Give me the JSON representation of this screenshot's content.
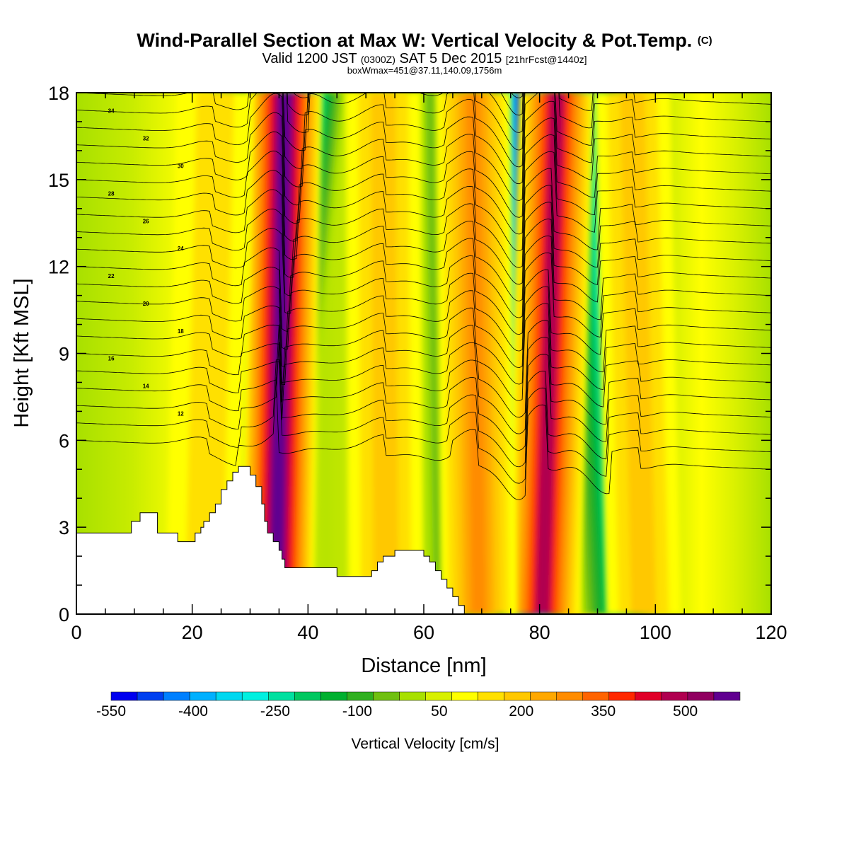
{
  "chart_data": {
    "type": "heatmap",
    "title": "Wind-Parallel Section at Max W: Vertical Velocity & Pot.Temp.",
    "copyright_mark": "(C)",
    "subtitle_main": "Valid 1200 JST",
    "subtitle_utc": "(0300Z)",
    "subtitle_date": "SAT 5 Dec 2015",
    "subtitle_fcst": "[21hrFcst@1440z]",
    "subtitle2": "boxWmax=451@37.11,140.09,1756m",
    "xlabel": "Distance [nm]",
    "ylabel": "Height [Kft MSL]",
    "xlim": [
      0,
      120
    ],
    "ylim": [
      0,
      18
    ],
    "x_ticks": [
      "0",
      "20",
      "40",
      "60",
      "80",
      "100",
      "120"
    ],
    "y_ticks": [
      "0",
      "3",
      "6",
      "9",
      "12",
      "15",
      "18"
    ],
    "colorbar": {
      "label": "Vertical Velocity [cm/s]",
      "tick_labels": [
        "-550",
        "-400",
        "-250",
        "-100",
        "50",
        "200",
        "350",
        "500"
      ],
      "colors": [
        "#0000f0",
        "#0040f0",
        "#0080ff",
        "#00b0ff",
        "#00d8f0",
        "#00f0e0",
        "#00e0a0",
        "#00c860",
        "#00b030",
        "#30b020",
        "#70c010",
        "#a8e000",
        "#d8f000",
        "#ffff00",
        "#ffe000",
        "#ffc800",
        "#ffa800",
        "#ff8c00",
        "#ff6400",
        "#ff2800",
        "#e00028",
        "#b00050",
        "#900060",
        "#600090"
      ]
    },
    "updrafts": [
      {
        "x_top": 36.0,
        "x_bottom": 34.5,
        "peak_cm_s": 550
      },
      {
        "x_top": 83.0,
        "x_bottom": 80.5,
        "peak_cm_s": 451
      },
      {
        "x_top": 68.5,
        "x_bottom": 69.5,
        "peak_cm_s": 250
      },
      {
        "x_top": 96.0,
        "x_bottom": 98.0,
        "peak_cm_s": 150
      },
      {
        "x_top": 53.0,
        "x_bottom": 53.5,
        "peak_cm_s": 150
      },
      {
        "x_top": 24.0,
        "x_bottom": 22.0,
        "peak_cm_s": 100
      }
    ],
    "downdrafts": [
      {
        "x_top": 77.0,
        "x_bottom": 78.0,
        "peak_cm_s": -550
      },
      {
        "x_top": 40.0,
        "x_bottom": 31.5,
        "peak_cm_s": -400
      },
      {
        "x_top": 89.0,
        "x_bottom": 93.5,
        "peak_cm_s": -300
      },
      {
        "x_top": 30.0,
        "x_bottom": 27.0,
        "peak_cm_s": -150
      },
      {
        "x_top": 63.5,
        "x_bottom": 65.0,
        "peak_cm_s": -100
      }
    ],
    "terrain_kft": [
      [
        0,
        2.8
      ],
      [
        9.5,
        2.8
      ],
      [
        9.5,
        3.2
      ],
      [
        11,
        3.2
      ],
      [
        11,
        3.5
      ],
      [
        14,
        3.5
      ],
      [
        14,
        2.8
      ],
      [
        17.5,
        2.8
      ],
      [
        17.5,
        2.5
      ],
      [
        20.5,
        2.5
      ],
      [
        20.5,
        2.8
      ],
      [
        21.5,
        2.8
      ],
      [
        21.5,
        3
      ],
      [
        22,
        3
      ],
      [
        22,
        3.2
      ],
      [
        23,
        3.2
      ],
      [
        23,
        3.5
      ],
      [
        24,
        3.5
      ],
      [
        24,
        3.8
      ],
      [
        25,
        3.8
      ],
      [
        25,
        4.3
      ],
      [
        26,
        4.3
      ],
      [
        26,
        4.6
      ],
      [
        27,
        4.6
      ],
      [
        27,
        4.9
      ],
      [
        28,
        4.9
      ],
      [
        28,
        5.1
      ],
      [
        30,
        5.1
      ],
      [
        30,
        4.8
      ],
      [
        31,
        4.8
      ],
      [
        31,
        4.4
      ],
      [
        32,
        4.4
      ],
      [
        32,
        3.8
      ],
      [
        32.5,
        3.8
      ],
      [
        32.5,
        3.2
      ],
      [
        33,
        3.2
      ],
      [
        33,
        2.8
      ],
      [
        34,
        2.8
      ],
      [
        34,
        2.5
      ],
      [
        35,
        2.5
      ],
      [
        35,
        2.2
      ],
      [
        35.5,
        2.2
      ],
      [
        35.5,
        1.9
      ],
      [
        36,
        1.9
      ],
      [
        36,
        1.6
      ],
      [
        45,
        1.6
      ],
      [
        45,
        1.3
      ],
      [
        51,
        1.3
      ],
      [
        51,
        1.5
      ],
      [
        52,
        1.5
      ],
      [
        52,
        1.8
      ],
      [
        53,
        1.8
      ],
      [
        53,
        2
      ],
      [
        55,
        2
      ],
      [
        55,
        2.2
      ],
      [
        60,
        2.2
      ],
      [
        60,
        2
      ],
      [
        61,
        2
      ],
      [
        61,
        1.8
      ],
      [
        62,
        1.8
      ],
      [
        62,
        1.5
      ],
      [
        63,
        1.5
      ],
      [
        63,
        1.2
      ],
      [
        64,
        1.2
      ],
      [
        64,
        0.9
      ],
      [
        65,
        0.9
      ],
      [
        65,
        0.6
      ],
      [
        66,
        0.6
      ],
      [
        66,
        0.3
      ],
      [
        67,
        0.3
      ],
      [
        67,
        0
      ]
    ],
    "theta_contour_labels": [
      "34",
      "32",
      "30",
      "28",
      "26",
      "24",
      "22",
      "20",
      "18",
      "16",
      "14",
      "12"
    ]
  }
}
